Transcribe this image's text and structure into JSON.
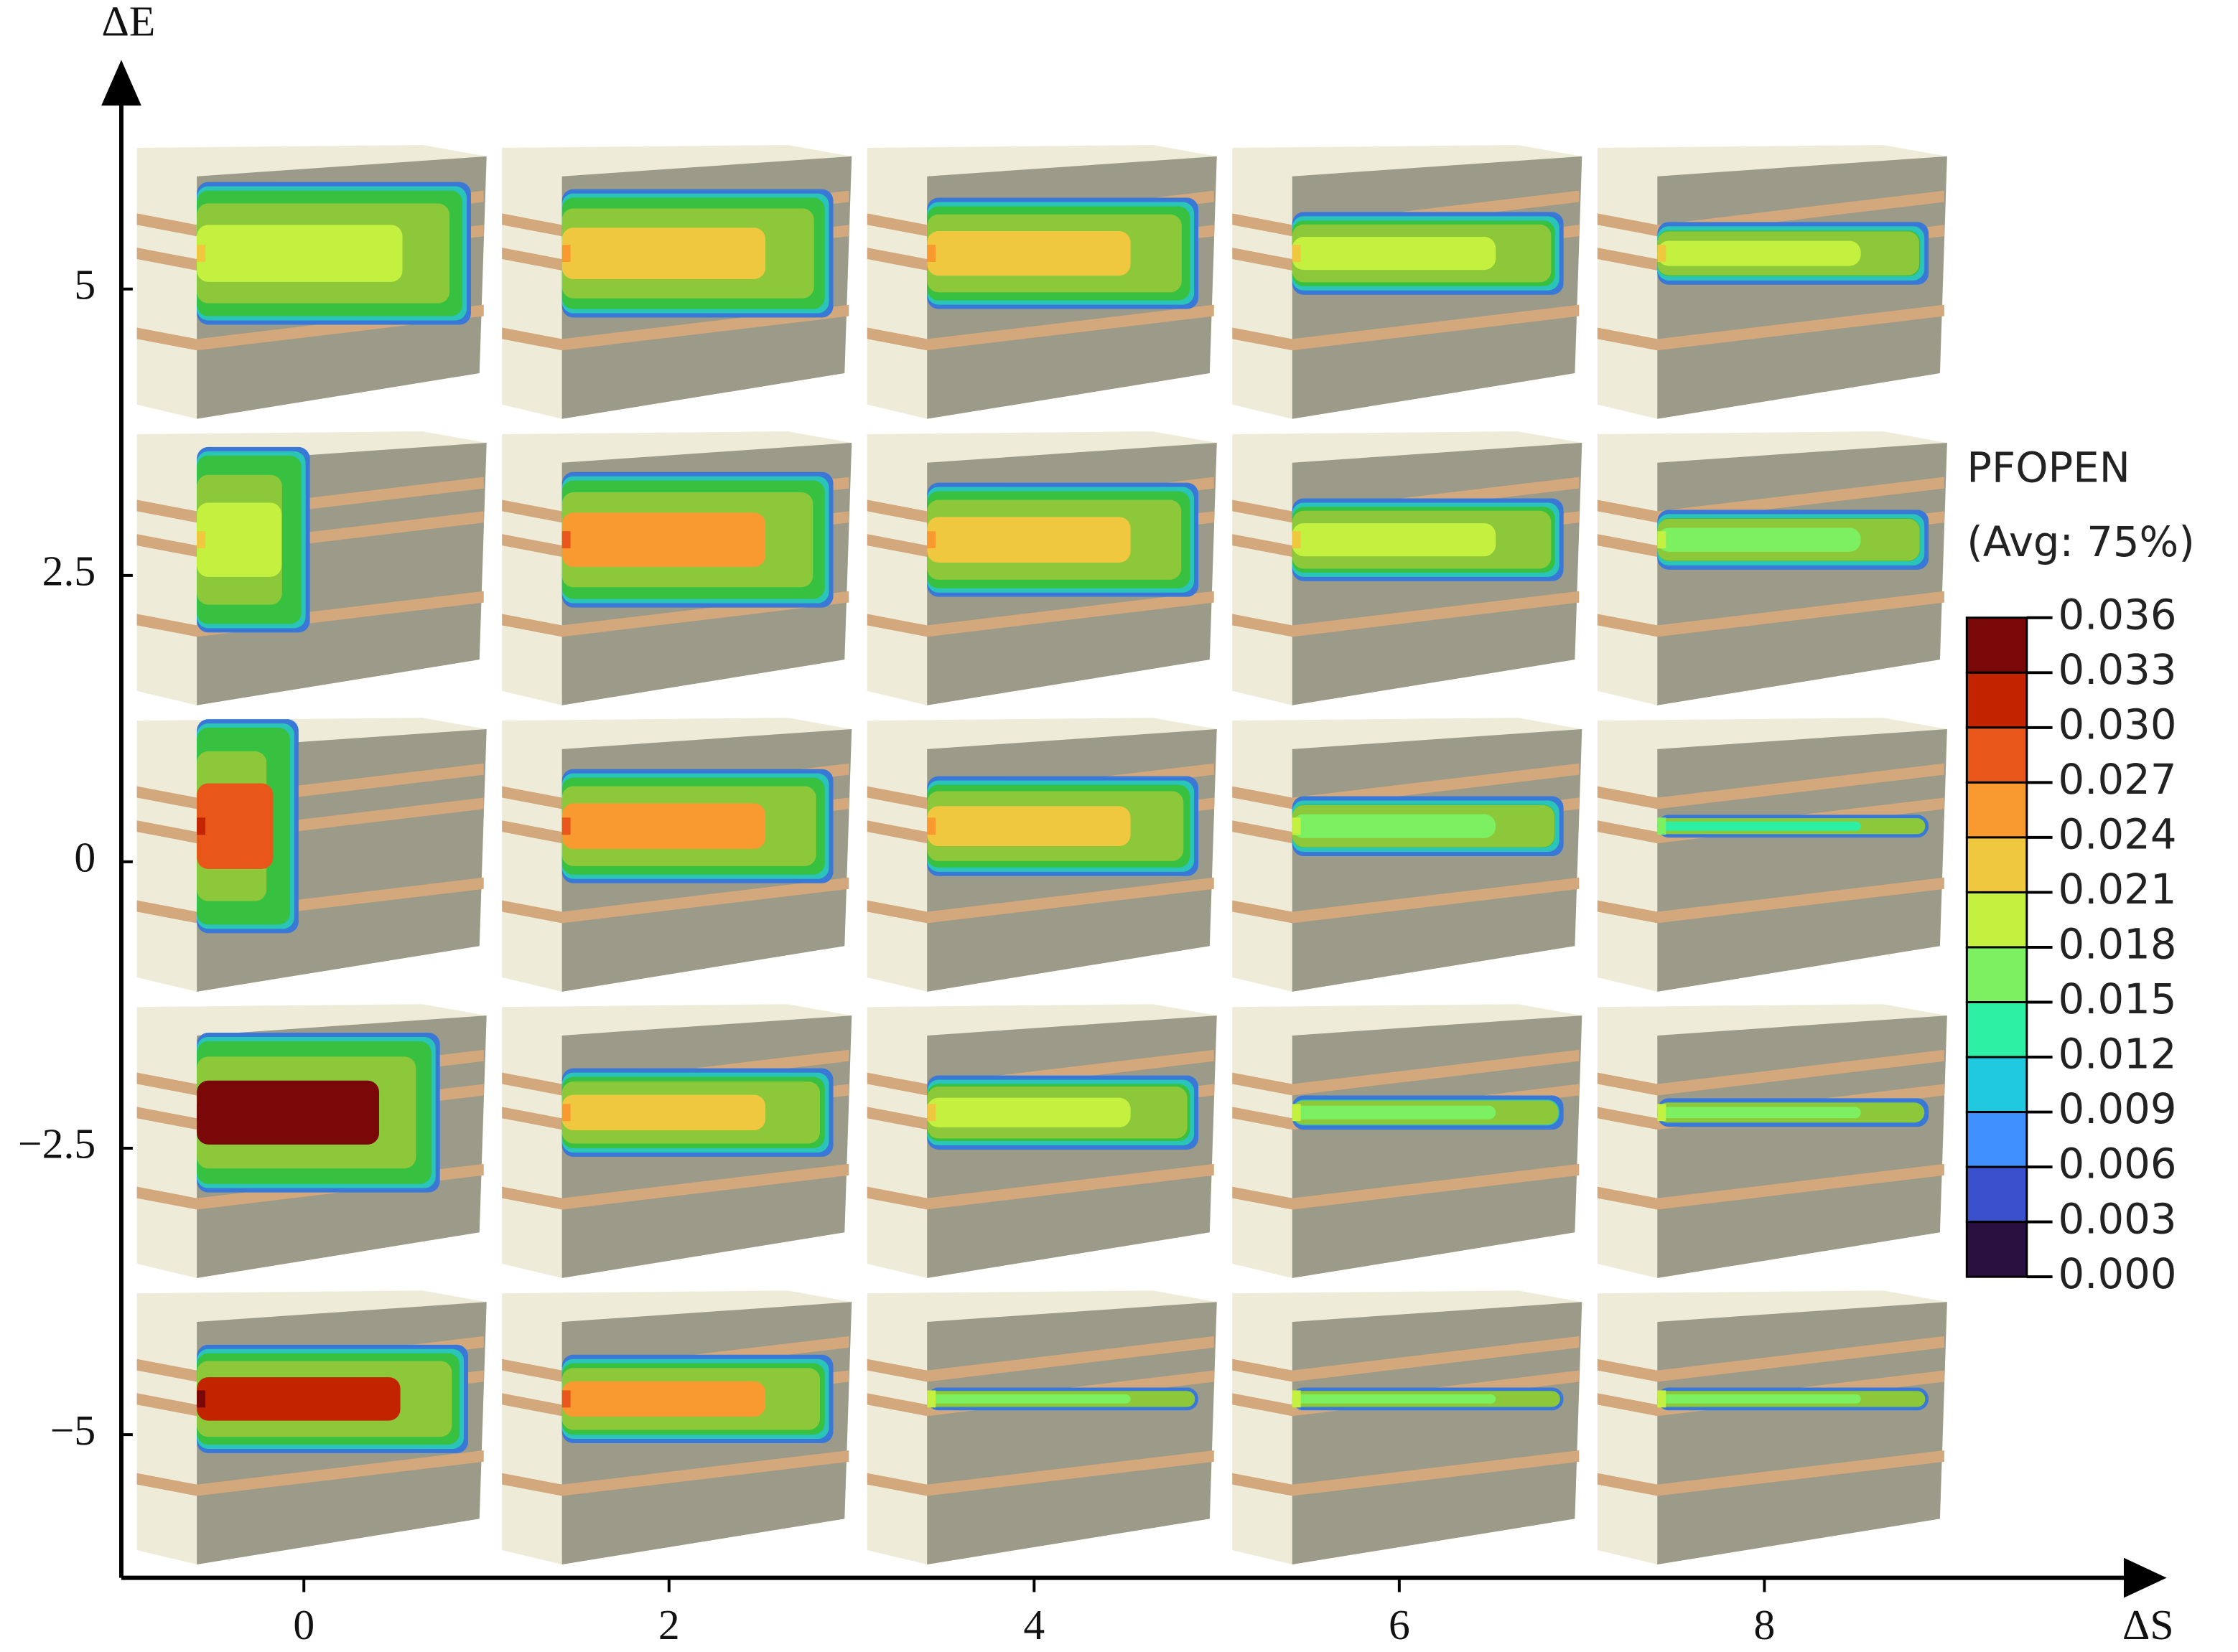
{
  "chart_data": {
    "type": "panel-grid",
    "x_label": "ΔS",
    "y_label": "ΔE",
    "xlim": [
      -1,
      10
    ],
    "ylim": [
      -6.25,
      7
    ],
    "xticks": [
      0,
      2,
      4,
      6,
      8
    ],
    "yticks": [
      5,
      2.5,
      0,
      {
        "value": -2.5,
        "label": "−2.5"
      },
      {
        "value": -5,
        "label": "−5"
      }
    ],
    "legend": {
      "title": "PFOPEN",
      "subtitle": "(Avg: 75%)",
      "levels": [
        {
          "value": 0.036,
          "label": "0.036"
        },
        {
          "value": 0.033,
          "label": "0.033"
        },
        {
          "value": 0.03,
          "label": "0.030"
        },
        {
          "value": 0.027,
          "label": "0.027"
        },
        {
          "value": 0.024,
          "label": "0.024"
        },
        {
          "value": 0.021,
          "label": "0.021"
        },
        {
          "value": 0.018,
          "label": "0.018"
        },
        {
          "value": 0.015,
          "label": "0.015"
        },
        {
          "value": 0.012,
          "label": "0.012"
        },
        {
          "value": 0.009,
          "label": "0.009"
        },
        {
          "value": 0.006,
          "label": "0.006"
        },
        {
          "value": 0.003,
          "label": "0.003"
        },
        {
          "value": 0,
          "label": "0.000"
        }
      ],
      "colors": [
        "#7a0808",
        "#c22400",
        "#e8561a",
        "#f89a30",
        "#efc840",
        "#c4f040",
        "#7cf060",
        "#2ef0a4",
        "#20c8e0",
        "#4090ff",
        "#3a50cc",
        "#2a1040"
      ]
    }
  }
}
